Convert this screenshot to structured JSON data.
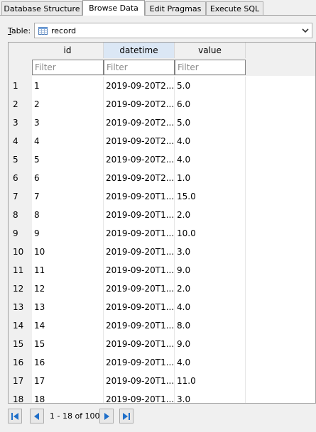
{
  "tabs": [
    {
      "label": "Database Structure"
    },
    {
      "label": "Browse Data"
    },
    {
      "label": "Edit Pragmas"
    },
    {
      "label": "Execute SQL"
    }
  ],
  "table_selector": {
    "label": "Table:",
    "value": "record"
  },
  "columns": [
    {
      "label": "id",
      "filter_placeholder": "Filter"
    },
    {
      "label": "datetime",
      "filter_placeholder": "Filter"
    },
    {
      "label": "value",
      "filter_placeholder": "Filter"
    }
  ],
  "rows": [
    {
      "num": "1",
      "id": "1",
      "datetime": "2019-09-20T2...",
      "value": "5.0"
    },
    {
      "num": "2",
      "id": "2",
      "datetime": "2019-09-20T2...",
      "value": "6.0"
    },
    {
      "num": "3",
      "id": "3",
      "datetime": "2019-09-20T2...",
      "value": "5.0"
    },
    {
      "num": "4",
      "id": "4",
      "datetime": "2019-09-20T2...",
      "value": "4.0"
    },
    {
      "num": "5",
      "id": "5",
      "datetime": "2019-09-20T2...",
      "value": "4.0"
    },
    {
      "num": "6",
      "id": "6",
      "datetime": "2019-09-20T2...",
      "value": "1.0"
    },
    {
      "num": "7",
      "id": "7",
      "datetime": "2019-09-20T1...",
      "value": "15.0"
    },
    {
      "num": "8",
      "id": "8",
      "datetime": "2019-09-20T1...",
      "value": "2.0"
    },
    {
      "num": "9",
      "id": "9",
      "datetime": "2019-09-20T1...",
      "value": "10.0"
    },
    {
      "num": "10",
      "id": "10",
      "datetime": "2019-09-20T1...",
      "value": "3.0"
    },
    {
      "num": "11",
      "id": "11",
      "datetime": "2019-09-20T1...",
      "value": "9.0"
    },
    {
      "num": "12",
      "id": "12",
      "datetime": "2019-09-20T1...",
      "value": "2.0"
    },
    {
      "num": "13",
      "id": "13",
      "datetime": "2019-09-20T1...",
      "value": "4.0"
    },
    {
      "num": "14",
      "id": "14",
      "datetime": "2019-09-20T1...",
      "value": "8.0"
    },
    {
      "num": "15",
      "id": "15",
      "datetime": "2019-09-20T1...",
      "value": "9.0"
    },
    {
      "num": "16",
      "id": "16",
      "datetime": "2019-09-20T1...",
      "value": "4.0"
    },
    {
      "num": "17",
      "id": "17",
      "datetime": "2019-09-20T1...",
      "value": "11.0"
    },
    {
      "num": "18",
      "id": "18",
      "datetime": "2019-09-20T1...",
      "value": "3.0"
    }
  ],
  "navigation": {
    "page_info": "1 - 18 of 100"
  },
  "colors": {
    "accent": "#1f6fc9",
    "selected_header": "#dbe7f5"
  }
}
